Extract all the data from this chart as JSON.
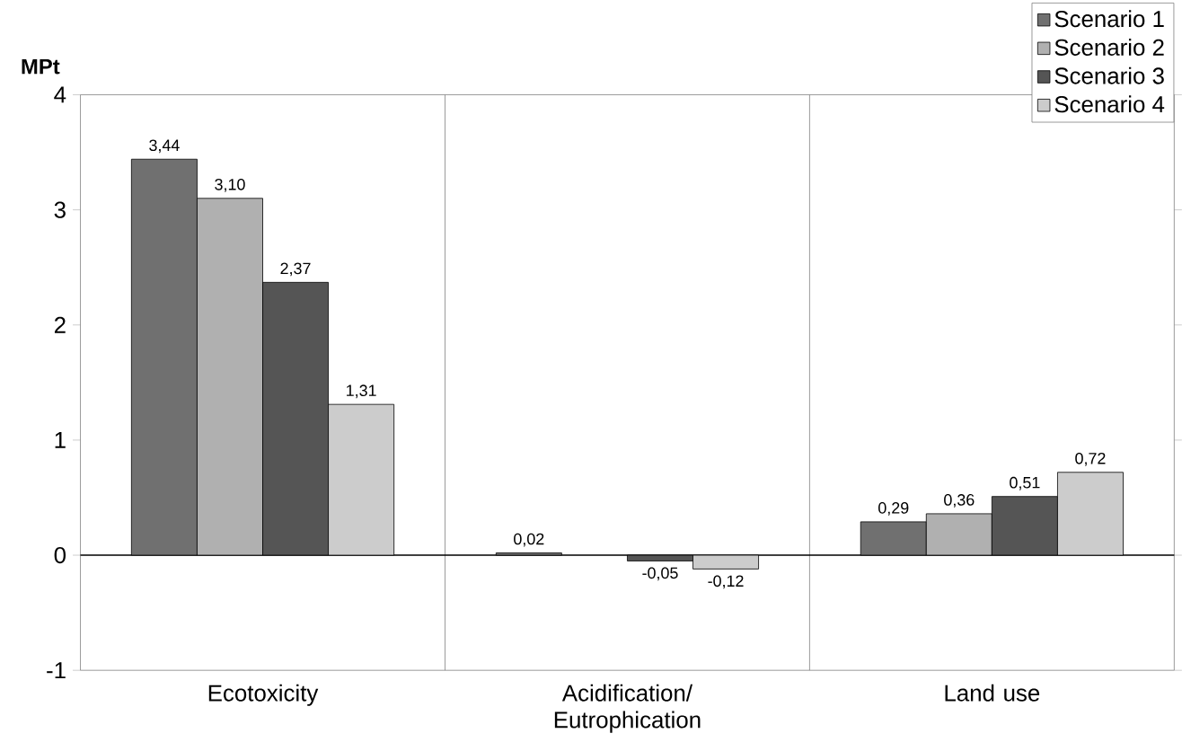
{
  "chart_data": {
    "type": "bar",
    "ylabel": "MPt",
    "categories": [
      "Ecotoxicity",
      "Acidification/ Eutrophication",
      "Land use"
    ],
    "series": [
      {
        "name": "Scenario 1",
        "color": "#707070",
        "values": [
          3.44,
          0.02,
          0.29
        ],
        "value_labels": [
          "3,44",
          "0,02",
          "0,29"
        ]
      },
      {
        "name": "Scenario 2",
        "color": "#b0b0b0",
        "values": [
          3.1,
          null,
          0.36
        ],
        "value_labels": [
          "3,10",
          null,
          "0,36"
        ]
      },
      {
        "name": "Scenario 3",
        "color": "#555555",
        "values": [
          2.37,
          -0.05,
          0.51
        ],
        "value_labels": [
          "2,37",
          "-0,05",
          "0,51"
        ]
      },
      {
        "name": "Scenario 4",
        "color": "#cccccc",
        "values": [
          1.31,
          -0.12,
          0.72
        ],
        "value_labels": [
          "1,31",
          "-0,12",
          "0,72"
        ]
      }
    ],
    "ylim": [
      -1,
      4
    ],
    "yticks": [
      -1,
      0,
      1,
      2,
      3,
      4
    ],
    "grid": "x",
    "legend": "top right"
  }
}
